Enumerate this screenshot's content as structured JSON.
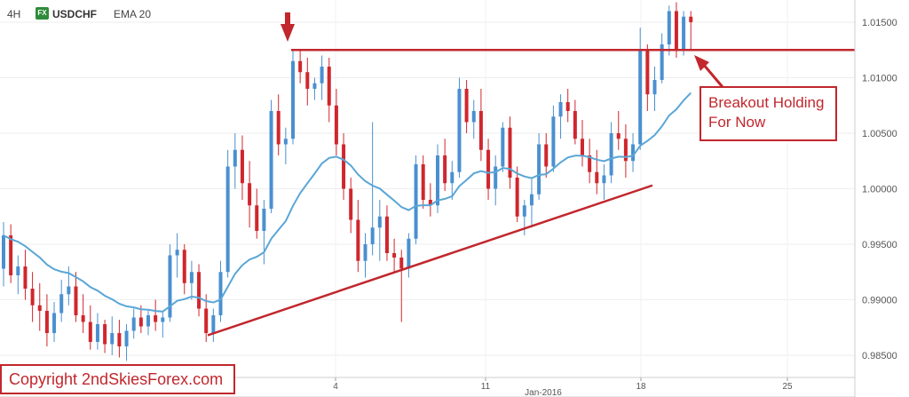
{
  "header": {
    "timeframe": "4H",
    "fx_badge": "FX",
    "symbol": "USDCHF",
    "indicator": "EMA 20"
  },
  "annotations": {
    "breakout_line1": "Breakout Holding",
    "breakout_line2": "For Now",
    "copyright": "Copyright 2ndSkiesForex.com"
  },
  "colors": {
    "bull": "#4a90d0",
    "bear": "#d0262d",
    "ema": "#5aa6d6",
    "trendline": "#c1272d"
  },
  "chart_data": {
    "type": "candlestick",
    "title": "",
    "ylim": [
      0.983,
      1.017
    ],
    "y_ticks": [
      "1.01500",
      "1.01000",
      "1.00500",
      "1.00000",
      "0.99500",
      "0.99000",
      "0.98500"
    ],
    "x_ticks": [
      "4",
      "11",
      "18",
      "25"
    ],
    "x_month_label": "Jan-2016",
    "resistance_level": 1.0125,
    "support_trendline": {
      "from": 0.9868,
      "to": 1.0003
    },
    "ohlc": [
      [
        0.9928,
        0.997,
        0.9912,
        0.9958
      ],
      [
        0.9958,
        0.9968,
        0.9915,
        0.9922
      ],
      [
        0.9922,
        0.994,
        0.9905,
        0.993
      ],
      [
        0.993,
        0.9945,
        0.99,
        0.991
      ],
      [
        0.991,
        0.9925,
        0.988,
        0.9895
      ],
      [
        0.9895,
        0.9915,
        0.9872,
        0.989
      ],
      [
        0.989,
        0.9905,
        0.9858,
        0.987
      ],
      [
        0.987,
        0.9898,
        0.9862,
        0.9888
      ],
      [
        0.9888,
        0.9918,
        0.988,
        0.9905
      ],
      [
        0.9905,
        0.993,
        0.9895,
        0.9912
      ],
      [
        0.9912,
        0.9925,
        0.988,
        0.9886
      ],
      [
        0.9886,
        0.9905,
        0.987,
        0.988
      ],
      [
        0.988,
        0.9895,
        0.9855,
        0.9862
      ],
      [
        0.9862,
        0.9888,
        0.9855,
        0.9878
      ],
      [
        0.9878,
        0.9882,
        0.9852,
        0.986
      ],
      [
        0.986,
        0.9885,
        0.985,
        0.987
      ],
      [
        0.987,
        0.9882,
        0.9848,
        0.9858
      ],
      [
        0.9858,
        0.9878,
        0.9845,
        0.9872
      ],
      [
        0.9872,
        0.9892,
        0.9865,
        0.9884
      ],
      [
        0.9884,
        0.9895,
        0.987,
        0.9876
      ],
      [
        0.9876,
        0.989,
        0.9868,
        0.9886
      ],
      [
        0.9886,
        0.99,
        0.9872,
        0.988
      ],
      [
        0.988,
        0.989,
        0.9866,
        0.9884
      ],
      [
        0.9884,
        0.995,
        0.988,
        0.994
      ],
      [
        0.994,
        0.996,
        0.992,
        0.9945
      ],
      [
        0.9945,
        0.995,
        0.9905,
        0.9915
      ],
      [
        0.9915,
        0.9935,
        0.99,
        0.9925
      ],
      [
        0.9925,
        0.9932,
        0.9885,
        0.9892
      ],
      [
        0.9892,
        0.9905,
        0.9862,
        0.987
      ],
      [
        0.987,
        0.9892,
        0.9862,
        0.9886
      ],
      [
        0.9886,
        0.9935,
        0.988,
        0.9925
      ],
      [
        0.9925,
        1.0035,
        0.992,
        1.002
      ],
      [
        1.002,
        1.005,
        1.0,
        1.0035
      ],
      [
        1.0035,
        1.0048,
        0.999,
        1.0005
      ],
      [
        1.0005,
        1.0025,
        0.9965,
        0.9985
      ],
      [
        0.9985,
        1.0,
        0.9955,
        0.9962
      ],
      [
        0.9962,
        0.999,
        0.9932,
        0.9982
      ],
      [
        0.9982,
        1.008,
        0.9978,
        1.007
      ],
      [
        1.007,
        1.0085,
        1.003,
        1.004
      ],
      [
        1.004,
        1.0055,
        1.0022,
        1.0045
      ],
      [
        1.0045,
        1.0125,
        1.004,
        1.0115
      ],
      [
        1.0115,
        1.0125,
        1.0095,
        1.0105
      ],
      [
        1.0105,
        1.0118,
        1.0075,
        1.009
      ],
      [
        1.009,
        1.01,
        1.008,
        1.0095
      ],
      [
        1.0095,
        1.012,
        1.008,
        1.011
      ],
      [
        1.011,
        1.0118,
        1.006,
        1.0075
      ],
      [
        1.0075,
        1.009,
        1.003,
        1.004
      ],
      [
        1.004,
        1.005,
        0.999,
        1.0
      ],
      [
        1.0,
        1.001,
        0.996,
        0.9972
      ],
      [
        0.9972,
        0.999,
        0.9925,
        0.9935
      ],
      [
        0.9935,
        0.996,
        0.992,
        0.995
      ],
      [
        0.995,
        1.006,
        0.994,
        0.9965
      ],
      [
        0.9965,
        0.999,
        0.9935,
        0.9975
      ],
      [
        0.9975,
        0.9985,
        0.9935,
        0.9942
      ],
      [
        0.9942,
        0.9955,
        0.9925,
        0.9938
      ],
      [
        0.9938,
        0.9945,
        0.988,
        0.9928
      ],
      [
        0.9928,
        0.996,
        0.992,
        0.9955
      ],
      [
        0.9955,
        1.003,
        0.995,
        1.0022
      ],
      [
        1.0022,
        1.003,
        0.9982,
        0.999
      ],
      [
        0.999,
        1.0005,
        0.9975,
        0.9985
      ],
      [
        0.9985,
        1.004,
        0.9978,
        1.003
      ],
      [
        1.003,
        1.0045,
        0.9998,
        1.0005
      ],
      [
        1.0005,
        1.0025,
        0.999,
        1.0015
      ],
      [
        1.0015,
        1.01,
        1.001,
        1.009
      ],
      [
        1.009,
        1.0098,
        1.005,
        1.006
      ],
      [
        1.006,
        1.008,
        1.0045,
        1.007
      ],
      [
        1.007,
        1.009,
        1.0025,
        1.0035
      ],
      [
        1.0035,
        1.0045,
        0.999,
        1.0
      ],
      [
        1.0,
        1.003,
        0.9985,
        1.002
      ],
      [
        1.002,
        1.006,
        1.0015,
        1.0055
      ],
      [
        1.0055,
        1.0065,
        1.0,
        1.001
      ],
      [
        1.001,
        1.002,
        0.997,
        0.9975
      ],
      [
        0.9975,
        0.999,
        0.9958,
        0.9985
      ],
      [
        0.9985,
        1.001,
        0.9965,
        0.9995
      ],
      [
        0.9995,
        1.005,
        0.999,
        1.004
      ],
      [
        1.004,
        1.005,
        1.001,
        1.002
      ],
      [
        1.002,
        1.0075,
        1.0015,
        1.0065
      ],
      [
        1.0065,
        1.0085,
        1.0045,
        1.0078
      ],
      [
        1.0078,
        1.009,
        1.006,
        1.007
      ],
      [
        1.007,
        1.008,
        1.004,
        1.0045
      ],
      [
        1.0045,
        1.0062,
        1.002,
        1.003
      ],
      [
        1.003,
        1.0045,
        1.0005,
        1.0015
      ],
      [
        1.0015,
        1.0035,
        0.9995,
        1.0005
      ],
      [
        1.0005,
        1.0022,
        0.999,
        1.0012
      ],
      [
        1.0012,
        1.006,
        1.0005,
        1.005
      ],
      [
        1.005,
        1.007,
        1.0035,
        1.0045
      ],
      [
        1.0045,
        1.0058,
        1.001,
        1.0025
      ],
      [
        1.0025,
        1.005,
        1.0015,
        1.004
      ],
      [
        1.004,
        1.0145,
        1.0035,
        1.0125
      ],
      [
        1.0125,
        1.013,
        1.007,
        1.0085
      ],
      [
        1.0085,
        1.011,
        1.007,
        1.0098
      ],
      [
        1.0098,
        1.014,
        1.0095,
        1.013
      ],
      [
        1.013,
        1.0165,
        1.012,
        1.016
      ],
      [
        1.016,
        1.0168,
        1.0118,
        1.0125
      ],
      [
        1.0125,
        1.016,
        1.012,
        1.0155
      ],
      [
        1.0155,
        1.016,
        1.0125,
        1.015
      ]
    ]
  }
}
